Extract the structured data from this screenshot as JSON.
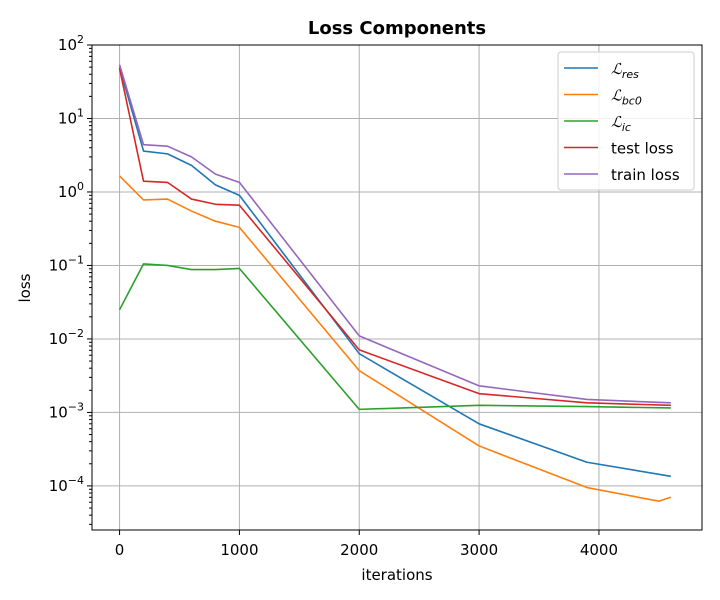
{
  "chart_data": {
    "type": "line",
    "title": "Loss Components",
    "xlabel": "iterations",
    "ylabel": "loss",
    "xlim": [
      -230,
      4860
    ],
    "ylim_log10": [
      -4.6,
      2.0
    ],
    "y_scale": "log",
    "grid": true,
    "legend_position": "top-right",
    "x_ticks": [
      0,
      1000,
      2000,
      3000,
      4000
    ],
    "x_tick_labels": [
      "0",
      "1000",
      "2000",
      "3000",
      "4000"
    ],
    "y_ticks_exp": [
      -4,
      -3,
      -2,
      -1,
      0,
      1,
      2
    ],
    "y_tick_base": "10",
    "y_tick_exponents": [
      "−4",
      "−3",
      "−2",
      "−1",
      "0",
      "1",
      "2"
    ],
    "series": [
      {
        "name": "res",
        "name_prefix": "ℒ",
        "name_sub": "res",
        "color": "#1f77b4",
        "x": [
          0,
          200,
          400,
          600,
          800,
          1000,
          2000,
          3000,
          3900,
          4600
        ],
        "y": [
          50,
          3.6,
          3.3,
          2.3,
          1.25,
          0.9,
          0.0063,
          0.0007,
          0.00021,
          0.000135
        ]
      },
      {
        "name": "bc0",
        "name_prefix": "ℒ",
        "name_sub": "bc0",
        "color": "#ff7f0e",
        "x": [
          0,
          200,
          400,
          600,
          800,
          1000,
          2000,
          3000,
          3900,
          4500,
          4600
        ],
        "y": [
          1.65,
          0.78,
          0.8,
          0.55,
          0.4,
          0.33,
          0.0037,
          0.00035,
          9.5e-05,
          6.2e-05,
          7e-05
        ]
      },
      {
        "name": "ic",
        "name_prefix": "ℒ",
        "name_sub": "ic",
        "color": "#2ca02c",
        "x": [
          0,
          200,
          400,
          600,
          800,
          1000,
          2000,
          3000,
          3900,
          4600
        ],
        "y": [
          0.025,
          0.105,
          0.1,
          0.088,
          0.088,
          0.091,
          0.0011,
          0.00125,
          0.0012,
          0.00115
        ]
      },
      {
        "name": "test loss",
        "name_prefix": "",
        "name_sub": "",
        "color": "#d62728",
        "x": [
          0,
          200,
          400,
          600,
          800,
          1000,
          2000,
          3000,
          3900,
          4600
        ],
        "y": [
          48,
          1.4,
          1.35,
          0.8,
          0.68,
          0.66,
          0.0071,
          0.0018,
          0.00135,
          0.00125
        ]
      },
      {
        "name": "train loss",
        "name_prefix": "",
        "name_sub": "",
        "color": "#9467bd",
        "x": [
          0,
          200,
          400,
          600,
          800,
          1000,
          2000,
          3000,
          3900,
          4600
        ],
        "y": [
          54,
          4.4,
          4.2,
          3.0,
          1.75,
          1.35,
          0.011,
          0.0023,
          0.0015,
          0.00135
        ]
      }
    ]
  }
}
